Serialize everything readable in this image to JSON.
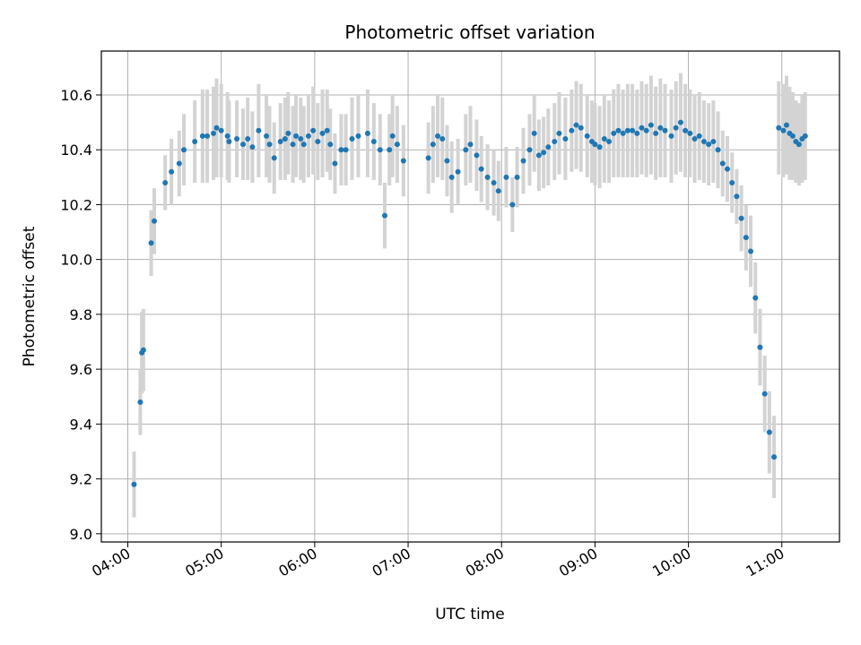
{
  "chart_data": {
    "type": "scatter",
    "title": "Photometric offset variation",
    "xlabel": "UTC time",
    "ylabel": "Photometric offset",
    "xlim": [
      "03:43",
      "11:37"
    ],
    "ylim": [
      8.97,
      10.76
    ],
    "x_ticks": [
      "04:00",
      "05:00",
      "06:00",
      "07:00",
      "08:00",
      "09:00",
      "10:00",
      "11:00"
    ],
    "y_ticks": [
      9.0,
      9.2,
      9.4,
      9.6,
      9.8,
      10.0,
      10.2,
      10.4,
      10.6
    ],
    "grid": true,
    "colors": {
      "points": "#1f77b4",
      "errorbars": "#d3d3d3",
      "grid": "#b0b0b0"
    },
    "series": [
      {
        "x": [
          "04:04",
          "04:08",
          "04:09",
          "04:10",
          "04:15",
          "04:17",
          "04:24",
          "04:28",
          "04:33",
          "04:36",
          "04:43",
          "04:48",
          "04:51",
          "04:55",
          "04:57",
          "05:00",
          "05:04",
          "05:05",
          "05:10",
          "05:14",
          "05:17",
          "05:20",
          "05:24",
          "05:29",
          "05:31",
          "05:34",
          "05:38",
          "05:41",
          "05:43",
          "05:46",
          "05:48",
          "05:51",
          "05:53",
          "05:56",
          "05:59",
          "06:02",
          "06:05",
          "06:08",
          "06:10",
          "06:13",
          "06:17",
          "06:20",
          "06:24",
          "06:28",
          "06:34",
          "06:38",
          "06:42",
          "06:45",
          "06:48",
          "06:50",
          "06:53",
          "06:57",
          "07:13",
          "07:16",
          "07:19",
          "07:22",
          "07:25",
          "07:28",
          "07:32",
          "07:37",
          "07:40",
          "07:44",
          "07:47",
          "07:51",
          "07:55",
          "07:58",
          "08:03",
          "08:07",
          "08:10",
          "08:14",
          "08:18",
          "08:21",
          "08:24",
          "08:27",
          "08:30",
          "08:34",
          "08:37",
          "08:41",
          "08:45",
          "08:48",
          "08:51",
          "08:55",
          "08:58",
          "09:00",
          "09:03",
          "09:06",
          "09:09",
          "09:12",
          "09:15",
          "09:18",
          "09:21",
          "09:24",
          "09:27",
          "09:30",
          "09:33",
          "09:36",
          "09:39",
          "09:42",
          "09:45",
          "09:49",
          "09:52",
          "09:55",
          "09:58",
          "10:01",
          "10:04",
          "10:07",
          "10:10",
          "10:13",
          "10:16",
          "10:19",
          "10:22",
          "10:25",
          "10:28",
          "10:31",
          "10:34",
          "10:37",
          "10:40",
          "10:43",
          "10:46",
          "10:49",
          "10:52",
          "10:55",
          "10:58",
          "11:01",
          "11:03",
          "11:05",
          "11:07",
          "11:09",
          "11:11",
          "11:13",
          "11:15"
        ],
        "y": [
          9.18,
          9.48,
          9.66,
          9.67,
          10.06,
          10.14,
          10.28,
          10.32,
          10.35,
          10.4,
          10.43,
          10.45,
          10.45,
          10.46,
          10.48,
          10.47,
          10.45,
          10.43,
          10.44,
          10.42,
          10.44,
          10.41,
          10.47,
          10.45,
          10.42,
          10.37,
          10.43,
          10.44,
          10.46,
          10.42,
          10.45,
          10.44,
          10.42,
          10.45,
          10.47,
          10.43,
          10.46,
          10.47,
          10.42,
          10.35,
          10.4,
          10.4,
          10.44,
          10.45,
          10.46,
          10.43,
          10.4,
          10.16,
          10.4,
          10.45,
          10.42,
          10.36,
          10.37,
          10.42,
          10.45,
          10.44,
          10.36,
          10.3,
          10.32,
          10.4,
          10.42,
          10.38,
          10.33,
          10.3,
          10.28,
          10.25,
          10.3,
          10.2,
          10.3,
          10.36,
          10.4,
          10.46,
          10.38,
          10.39,
          10.41,
          10.43,
          10.46,
          10.44,
          10.47,
          10.49,
          10.48,
          10.45,
          10.43,
          10.42,
          10.41,
          10.44,
          10.43,
          10.46,
          10.47,
          10.46,
          10.47,
          10.47,
          10.46,
          10.48,
          10.47,
          10.49,
          10.46,
          10.48,
          10.47,
          10.45,
          10.48,
          10.5,
          10.47,
          10.46,
          10.44,
          10.45,
          10.43,
          10.42,
          10.43,
          10.4,
          10.35,
          10.33,
          10.28,
          10.23,
          10.15,
          10.08,
          10.03,
          9.86,
          9.68,
          9.51,
          9.37,
          9.28,
          10.48,
          10.47,
          10.49,
          10.46,
          10.45,
          10.43,
          10.42,
          10.44,
          10.45
        ],
        "err": [
          0.12,
          0.12,
          0.15,
          0.15,
          0.12,
          0.12,
          0.1,
          0.12,
          0.12,
          0.13,
          0.15,
          0.17,
          0.17,
          0.17,
          0.18,
          0.17,
          0.16,
          0.15,
          0.14,
          0.13,
          0.15,
          0.13,
          0.17,
          0.15,
          0.14,
          0.13,
          0.14,
          0.15,
          0.15,
          0.14,
          0.15,
          0.15,
          0.14,
          0.15,
          0.16,
          0.14,
          0.16,
          0.15,
          0.13,
          0.11,
          0.13,
          0.13,
          0.15,
          0.15,
          0.16,
          0.14,
          0.13,
          0.12,
          0.13,
          0.15,
          0.14,
          0.13,
          0.13,
          0.14,
          0.15,
          0.15,
          0.13,
          0.13,
          0.12,
          0.13,
          0.14,
          0.13,
          0.12,
          0.12,
          0.12,
          0.11,
          0.11,
          0.1,
          0.11,
          0.12,
          0.13,
          0.14,
          0.13,
          0.13,
          0.14,
          0.14,
          0.15,
          0.15,
          0.15,
          0.16,
          0.16,
          0.15,
          0.15,
          0.15,
          0.15,
          0.16,
          0.15,
          0.16,
          0.17,
          0.16,
          0.17,
          0.17,
          0.16,
          0.17,
          0.17,
          0.18,
          0.17,
          0.18,
          0.17,
          0.17,
          0.17,
          0.18,
          0.17,
          0.16,
          0.16,
          0.16,
          0.15,
          0.15,
          0.15,
          0.14,
          0.12,
          0.12,
          0.11,
          0.1,
          0.12,
          0.12,
          0.13,
          0.13,
          0.14,
          0.14,
          0.15,
          0.15,
          0.17,
          0.17,
          0.18,
          0.17,
          0.16,
          0.15,
          0.15,
          0.16,
          0.16
        ]
      }
    ]
  }
}
